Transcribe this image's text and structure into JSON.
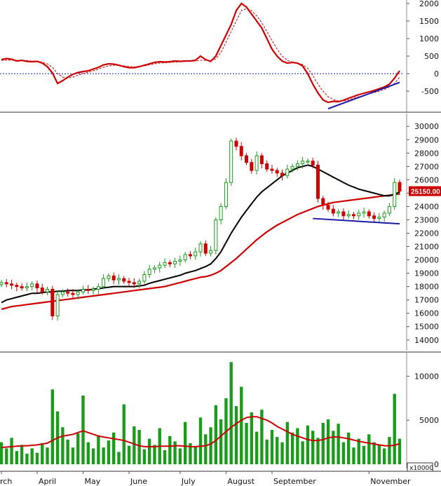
{
  "chart_data": [
    {
      "type": "line",
      "panel": "macd",
      "title": "",
      "ylim": [
        -1000,
        2000
      ],
      "y_ticks": [
        -500,
        0,
        500,
        1000,
        1500,
        2000
      ],
      "y_tick_labels": [
        "-500",
        "0",
        "500",
        "1000",
        "1500",
        "2000"
      ],
      "zero_line": true,
      "series": [
        {
          "values": [
            400,
            430,
            410,
            360,
            380,
            350,
            340,
            350,
            300,
            200,
            20,
            -280,
            -200,
            -100,
            -20,
            30,
            60,
            80,
            130,
            180,
            250,
            280,
            270,
            240,
            200,
            170,
            170,
            200,
            240,
            280,
            320,
            340,
            330,
            340,
            360,
            350,
            360,
            360,
            380,
            500,
            400,
            350,
            500,
            800,
            1100,
            1400,
            1800,
            2000,
            1900,
            1700,
            1500,
            1300,
            1000,
            700,
            500,
            360,
            300,
            320,
            300,
            220,
            0,
            -300,
            -550,
            -750,
            -820,
            -790,
            -800,
            -760,
            -700,
            -650,
            -600,
            -560,
            -520,
            -480,
            -430,
            -380,
            -300,
            -130,
            80
          ]
        },
        {
          "values": [
            380,
            380,
            390,
            380,
            380,
            370,
            360,
            350,
            330,
            280,
            180,
            0,
            -100,
            -130,
            -100,
            -40,
            0,
            40,
            80,
            130,
            180,
            220,
            240,
            240,
            220,
            200,
            190,
            200,
            220,
            250,
            280,
            300,
            310,
            320,
            330,
            340,
            350,
            350,
            360,
            380,
            380,
            370,
            420,
            600,
            900,
            1200,
            1500,
            1800,
            1850,
            1800,
            1650,
            1450,
            1200,
            950,
            700,
            500,
            380,
            330,
            300,
            260,
            150,
            -50,
            -300,
            -500,
            -660,
            -740,
            -780,
            -780,
            -750,
            -700,
            -660,
            -620,
            -580,
            -540,
            -500,
            -450,
            -380,
            -280,
            -100
          ],
          "style": "dashed"
        }
      ],
      "trendline": {
        "from": [
          64,
          -1000
        ],
        "to": [
          78,
          -250
        ]
      }
    },
    {
      "type": "candlestick",
      "panel": "price",
      "ylim": [
        13200,
        30800
      ],
      "y_ticks": [
        14000,
        15000,
        16000,
        17000,
        18000,
        19000,
        20000,
        21000,
        22000,
        23000,
        24000,
        25000,
        26000,
        27000,
        28000,
        29000,
        30000
      ],
      "y_tick_labels": [
        "14000",
        "15000",
        "16000",
        "17000",
        "18000",
        "19000",
        "20000",
        "21000",
        "22000",
        "23000",
        "24000",
        "25000",
        "26000",
        "27000",
        "28000",
        "29000",
        "30000"
      ],
      "last_price_label": "25150.00",
      "close": [
        18300,
        18200,
        18100,
        18000,
        17900,
        18000,
        18200,
        17900,
        17600,
        17800,
        15800,
        17400,
        17600,
        17500,
        17400,
        17600,
        17800,
        17700,
        17800,
        18000,
        18600,
        18800,
        18500,
        18600,
        18400,
        18300,
        18200,
        18400,
        18900,
        19300,
        19400,
        19600,
        19800,
        19700,
        19900,
        20000,
        20400,
        20300,
        20600,
        21200,
        20500,
        20700,
        23000,
        24000,
        25800,
        28900,
        28500,
        27800,
        27300,
        26700,
        27800,
        27200,
        26800,
        26700,
        26500,
        26300,
        26800,
        27000,
        27200,
        27400,
        27400,
        27100,
        24600,
        24100,
        23800,
        23500,
        23600,
        23300,
        23400,
        23300,
        23500,
        23600,
        23300,
        23100,
        23200,
        23500,
        24000,
        25800,
        25150
      ],
      "ma_short": [
        16800,
        17000,
        17100,
        17200,
        17300,
        17400,
        17500,
        17500,
        17550,
        17600,
        17600,
        17650,
        17650,
        17700,
        17700,
        17700,
        17750,
        17750,
        17800,
        17850,
        17900,
        17950,
        18000,
        18000,
        18000,
        18000,
        18000,
        18050,
        18100,
        18250,
        18350,
        18450,
        18550,
        18650,
        18750,
        18850,
        19000,
        19100,
        19200,
        19350,
        19500,
        19700,
        20100,
        20600,
        21300,
        22000,
        22600,
        23200,
        23700,
        24200,
        24700,
        25100,
        25400,
        25700,
        26000,
        26300,
        26500,
        26700,
        26900,
        27000,
        27100,
        27000,
        26800,
        26600,
        26400,
        26200,
        26000,
        25800,
        25600,
        25450,
        25300,
        25200,
        25100,
        25000,
        24900,
        24800,
        24800,
        24900,
        25100
      ]
    },
    {
      "type": "bar",
      "panel": "volume",
      "ylim": [
        0,
        12500
      ],
      "y_ticks": [
        0,
        5000,
        10000
      ],
      "y_tick_labels": [
        "0",
        "5000",
        "10000"
      ],
      "unit_label": "x10000",
      "values": [
        2500,
        1800,
        3000,
        1500,
        2200,
        1200,
        1800,
        1300,
        2400,
        1900,
        8500,
        6000,
        4200,
        2800,
        1900,
        3500,
        7800,
        2500,
        1800,
        3300,
        1900,
        2700,
        3600,
        1400,
        6800,
        2100,
        4300,
        3900,
        1700,
        2900,
        2200,
        4100,
        1600,
        3200,
        2600,
        1800,
        4800,
        2400,
        2000,
        5300,
        3400,
        4200,
        6700,
        5100,
        7500,
        11600,
        6600,
        8800,
        4700,
        5900,
        3700,
        6200,
        2800,
        3900,
        3100,
        2500,
        4800,
        3600,
        4100,
        2600,
        4400,
        3800,
        3000,
        4700,
        5100,
        3800,
        4600,
        2500,
        3600,
        1900,
        2900,
        2100,
        3400,
        2500,
        2200,
        1800,
        3100,
        8000,
        2900
      ],
      "ma": [
        1900,
        1950,
        2000,
        2050,
        2100,
        2100,
        2150,
        2200,
        2300,
        2400,
        2700,
        3000,
        3200,
        3300,
        3400,
        3600,
        3800,
        3600,
        3400,
        3200,
        3100,
        3000,
        2900,
        2800,
        2700,
        2500,
        2300,
        2100,
        2000,
        2000,
        2000,
        2050,
        2050,
        2050,
        2100,
        2100,
        2050,
        2000,
        2000,
        2050,
        2100,
        2300,
        2700,
        3200,
        3700,
        4200,
        4600,
        5000,
        5300,
        5400,
        5400,
        5200,
        5000,
        4700,
        4300,
        4000,
        3700,
        3400,
        3200,
        3000,
        2800,
        2700,
        2700,
        2800,
        3000,
        3100,
        3100,
        3000,
        2900,
        2750,
        2600,
        2500,
        2400,
        2300,
        2200,
        2100,
        2100,
        2150,
        2350
      ]
    }
  ],
  "ma_long": [
    16300,
    16400,
    16500,
    16550,
    16600,
    16650,
    16700,
    16750,
    16800,
    16850,
    16900,
    16950,
    17000,
    17050,
    17100,
    17150,
    17200,
    17250,
    17300,
    17350,
    17400,
    17450,
    17500,
    17550,
    17600,
    17650,
    17700,
    17750,
    17800,
    17850,
    17900,
    17950,
    18000,
    18100,
    18200,
    18300,
    18400,
    18500,
    18600,
    18700,
    18750,
    18850,
    19000,
    19200,
    19500,
    19800,
    20100,
    20450,
    20800,
    21150,
    21500,
    21800,
    22100,
    22350,
    22600,
    22800,
    23000,
    23200,
    23400,
    23550,
    23700,
    23850,
    24000,
    24100,
    24200,
    24300,
    24350,
    24400,
    24450,
    24500,
    24550,
    24600,
    24650,
    24700,
    24750,
    24800,
    24850,
    24900,
    24950
  ],
  "price_trendline": {
    "from": [
      61,
      23100
    ],
    "to": [
      78,
      22700
    ]
  },
  "month_labels": [
    {
      "label": "rch",
      "index": 0
    },
    {
      "label": "April",
      "index": 7
    },
    {
      "label": "May",
      "index": 16
    },
    {
      "label": "June",
      "index": 25
    },
    {
      "label": "July",
      "index": 35
    },
    {
      "label": "August",
      "index": 44
    },
    {
      "label": "September",
      "index": 53
    },
    {
      "label": "November",
      "index": 72
    }
  ],
  "colors": {
    "up": "#1a9c1a",
    "down": "#cc0000",
    "macd": "#cc0000",
    "ma_short": "#000000",
    "ma_long": "#cc0000",
    "trend": "#1a1aa8",
    "zero": "#1a1aa8",
    "tag_bg": "#cc0000",
    "tag_text": "#ffffff"
  }
}
